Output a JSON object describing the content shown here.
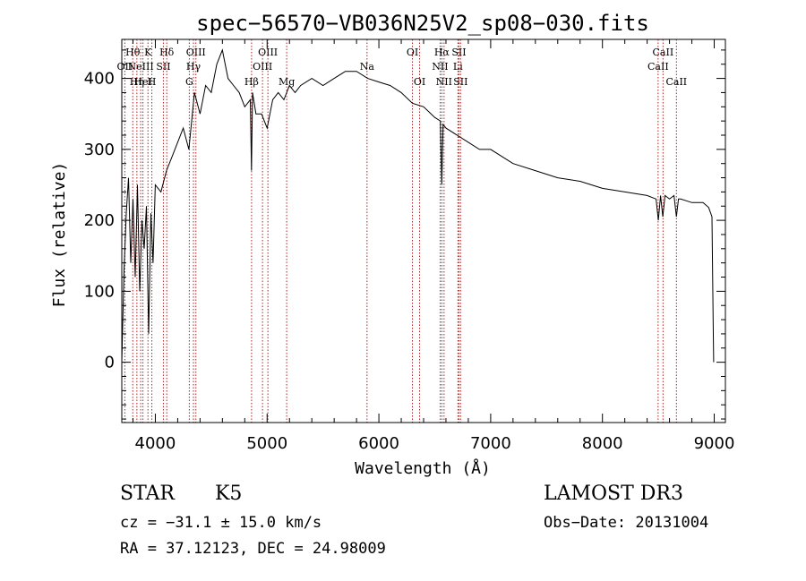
{
  "chart_data": {
    "type": "line",
    "title": "spec−56570−VB036N25V2_sp08−030.fits",
    "xlabel": "Wavelength (Å)",
    "ylabel": "Flux (relative)",
    "xlim": [
      3700,
      9100
    ],
    "ylim": [
      -85,
      455
    ],
    "x_ticks": [
      4000,
      5000,
      6000,
      7000,
      8000,
      9000
    ],
    "y_ticks": [
      0,
      100,
      200,
      300,
      400
    ],
    "grid": false,
    "line_color": "#000000",
    "marker_color": "#b22222",
    "series": [
      {
        "name": "flux",
        "x": [
          3700,
          3720,
          3740,
          3760,
          3780,
          3800,
          3820,
          3840,
          3860,
          3880,
          3900,
          3920,
          3940,
          3960,
          3980,
          4000,
          4050,
          4100,
          4150,
          4200,
          4250,
          4300,
          4350,
          4400,
          4450,
          4500,
          4550,
          4600,
          4650,
          4700,
          4750,
          4800,
          4850,
          4860,
          4870,
          4900,
          4950,
          5000,
          5050,
          5100,
          5150,
          5200,
          5250,
          5300,
          5400,
          5500,
          5600,
          5700,
          5800,
          5900,
          6000,
          6100,
          6200,
          6300,
          6400,
          6500,
          6550,
          6563,
          6575,
          6600,
          6700,
          6800,
          6900,
          7000,
          7200,
          7400,
          7600,
          7800,
          8000,
          8200,
          8400,
          8480,
          8500,
          8520,
          8540,
          8560,
          8600,
          8640,
          8662,
          8680,
          8700,
          8800,
          8900,
          8950,
          8980,
          8990,
          8995
        ],
        "y": [
          0,
          130,
          210,
          260,
          140,
          230,
          120,
          250,
          100,
          200,
          160,
          220,
          40,
          210,
          140,
          250,
          240,
          270,
          290,
          310,
          330,
          300,
          380,
          350,
          390,
          380,
          420,
          440,
          400,
          390,
          380,
          360,
          370,
          270,
          380,
          350,
          350,
          330,
          370,
          380,
          370,
          390,
          380,
          390,
          400,
          390,
          400,
          410,
          410,
          400,
          395,
          390,
          380,
          365,
          360,
          345,
          340,
          250,
          335,
          330,
          320,
          310,
          300,
          300,
          280,
          270,
          260,
          255,
          245,
          240,
          235,
          230,
          200,
          235,
          205,
          235,
          230,
          235,
          205,
          230,
          230,
          225,
          225,
          218,
          205,
          60,
          0
        ]
      }
    ],
    "lines": [
      {
        "wl": 3727,
        "label": "OII",
        "row": 2
      },
      {
        "wl": 3798,
        "label": "Hθ",
        "row": 1
      },
      {
        "wl": 3835,
        "label": "Hη",
        "row": 3
      },
      {
        "wl": 3869,
        "label": "NeIII",
        "row": 2
      },
      {
        "wl": 3889,
        "label": "HeI",
        "row": 3
      },
      {
        "wl": 3934,
        "label": "K",
        "row": 1
      },
      {
        "wl": 3969,
        "label": "H",
        "row": 3
      },
      {
        "wl": 4072,
        "label": "SII",
        "row": 2
      },
      {
        "wl": 4102,
        "label": "Hδ",
        "row": 1
      },
      {
        "wl": 4304,
        "label": "G",
        "row": 3
      },
      {
        "wl": 4341,
        "label": "Hγ",
        "row": 2
      },
      {
        "wl": 4363,
        "label": "OIII",
        "row": 1
      },
      {
        "wl": 4861,
        "label": "Hβ",
        "row": 3
      },
      {
        "wl": 4959,
        "label": "OIII",
        "row": 2
      },
      {
        "wl": 5007,
        "label": "OIII",
        "row": 1
      },
      {
        "wl": 5175,
        "label": "Mg",
        "row": 3
      },
      {
        "wl": 5894,
        "label": "Na",
        "row": 2
      },
      {
        "wl": 6300,
        "label": "OI",
        "row": 1
      },
      {
        "wl": 6364,
        "label": "OI",
        "row": 3
      },
      {
        "wl": 6548,
        "label": "NII",
        "row": 2
      },
      {
        "wl": 6563,
        "label": "Hα",
        "row": 1
      },
      {
        "wl": 6583,
        "label": "NII",
        "row": 3
      },
      {
        "wl": 6707,
        "label": "Li",
        "row": 2
      },
      {
        "wl": 6716,
        "label": "SII",
        "row": 1
      },
      {
        "wl": 6731,
        "label": "SII",
        "row": 3
      },
      {
        "wl": 8498,
        "label": "CaII",
        "row": 2
      },
      {
        "wl": 8542,
        "label": "CaII",
        "row": 1
      },
      {
        "wl": 8662,
        "label": "CaII",
        "row": 3
      }
    ]
  },
  "info": {
    "class_label": "STAR",
    "subclass": "K5",
    "survey": "LAMOST DR3",
    "cz": "cz = −31.1 ± 15.0 km/s",
    "obs_date": "Obs−Date: 20131004",
    "coords": "RA =  37.12123, DEC =  24.98009"
  }
}
